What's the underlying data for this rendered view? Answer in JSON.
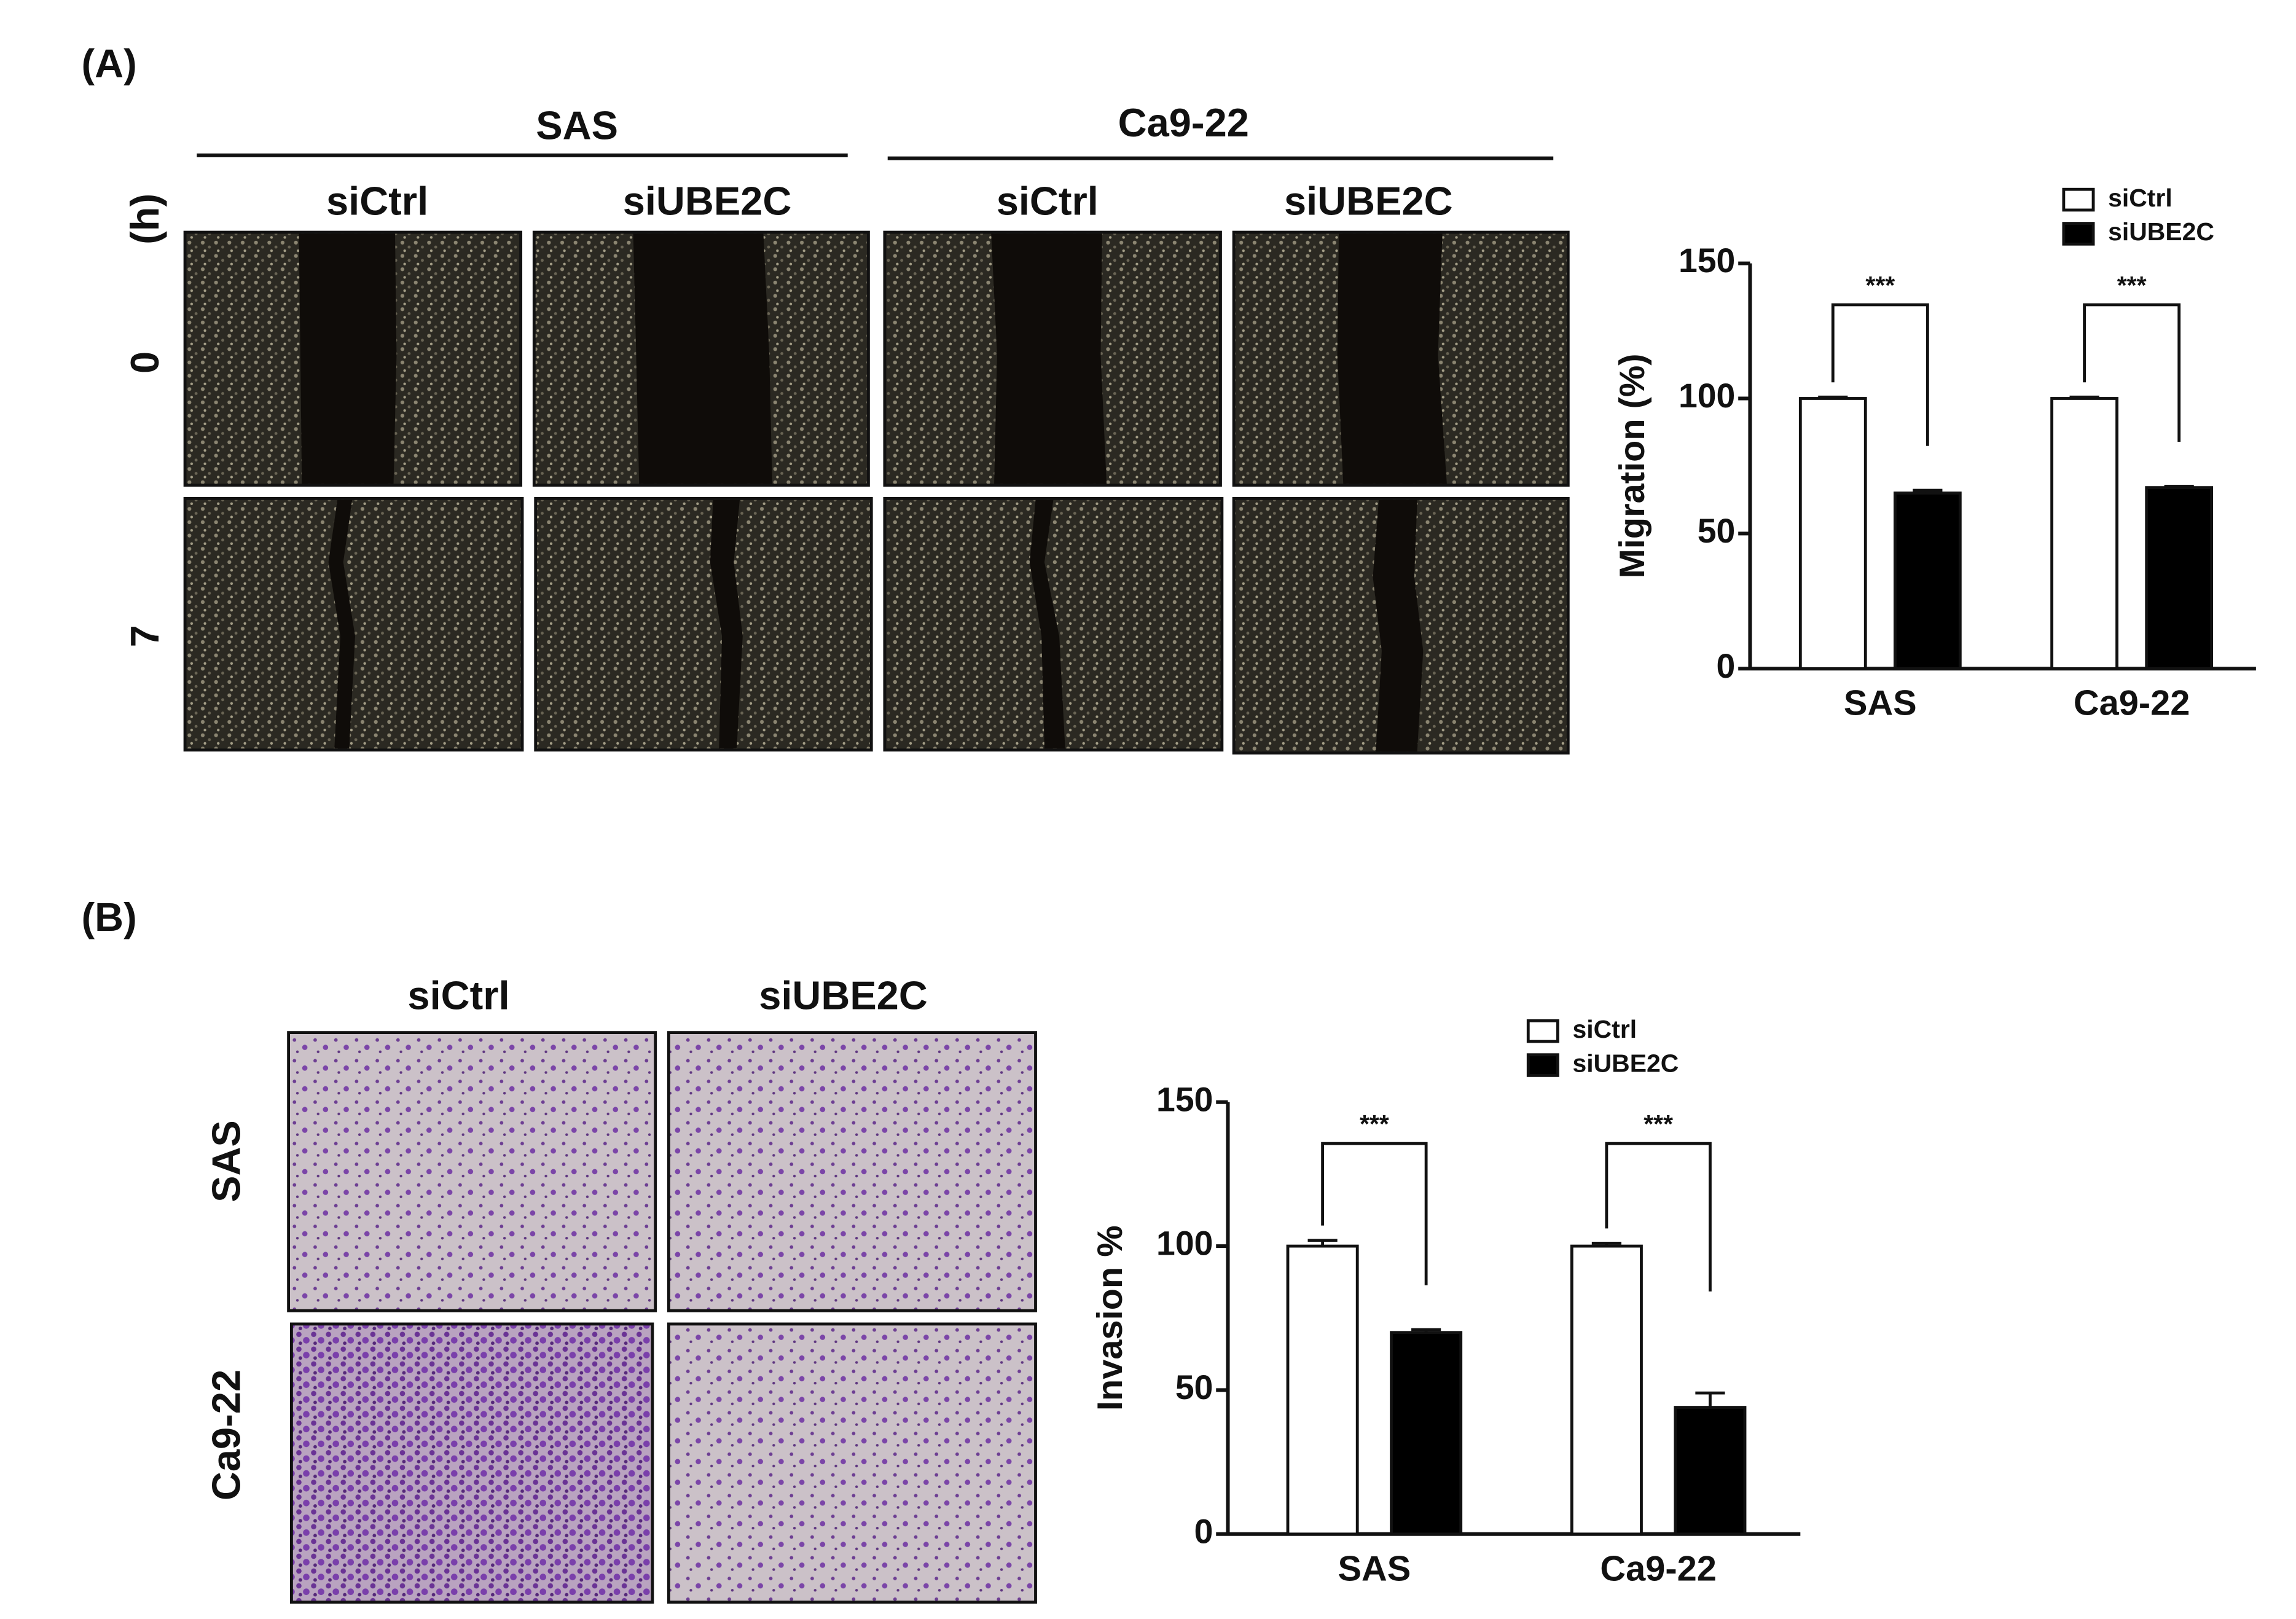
{
  "panel_a": {
    "label": "(A)",
    "groups": [
      "SAS",
      "Ca9-22"
    ],
    "columns": [
      "siCtrl",
      "siUBE2C",
      "siCtrl",
      "siUBE2C"
    ],
    "time_unit": "(h)",
    "times": [
      "0",
      "7"
    ]
  },
  "panel_b": {
    "label": "(B)",
    "columns": [
      "siCtrl",
      "siUBE2C"
    ],
    "rows": [
      "SAS",
      "Ca9-22"
    ]
  },
  "chart_data": [
    {
      "type": "bar",
      "y_label": "Migration (%)",
      "categories": [
        "SAS",
        "Ca9-22"
      ],
      "series": [
        {
          "name": "siCtrl",
          "color": "#ffffff",
          "values": [
            100,
            100
          ],
          "errors": [
            0.5,
            0.5
          ]
        },
        {
          "name": "siUBE2C",
          "color": "#000000",
          "values": [
            65,
            67
          ],
          "errors": [
            1,
            0.5
          ]
        }
      ],
      "annotations": [
        "***",
        "***"
      ],
      "ylim": [
        0,
        150
      ],
      "yticks": [
        0,
        50,
        100,
        150
      ],
      "legend": "upper right"
    },
    {
      "type": "bar",
      "y_label": "Invasion %",
      "categories": [
        "SAS",
        "Ca9-22"
      ],
      "series": [
        {
          "name": "siCtrl",
          "color": "#ffffff",
          "values": [
            100,
            100
          ],
          "errors": [
            2,
            1
          ]
        },
        {
          "name": "siUBE2C",
          "color": "#000000",
          "values": [
            70,
            44
          ],
          "errors": [
            1,
            5
          ]
        }
      ],
      "annotations": [
        "***",
        "***"
      ],
      "ylim": [
        0,
        150
      ],
      "yticks": [
        0,
        50,
        100,
        150
      ],
      "legend": "upper right"
    }
  ]
}
